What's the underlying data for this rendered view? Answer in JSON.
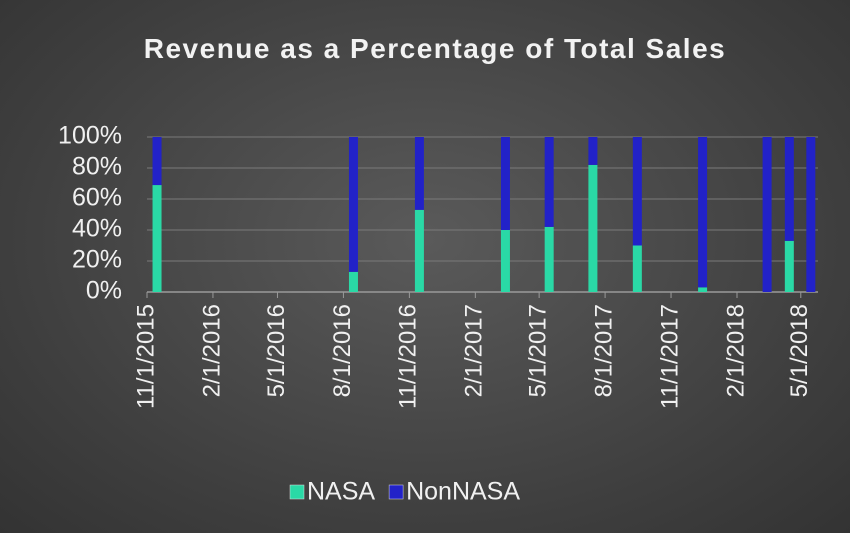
{
  "chart_data": {
    "type": "stacked_bar",
    "title": "Revenue as a Percentage of Total Sales",
    "x": [
      "11/15/2015",
      "8/15/2016",
      "11/15/2016",
      "3/15/2017",
      "5/15/2017",
      "7/15/2017",
      "9/15/2017",
      "12/15/2017",
      "3/15/2018",
      "4/15/2018",
      "5/15/2018"
    ],
    "series": [
      {
        "name": "NASA",
        "color": "#2ad9a6",
        "values": [
          69,
          13,
          53,
          40,
          42,
          82,
          30,
          3,
          0,
          33,
          0
        ]
      },
      {
        "name": "NonNASA",
        "color": "#2222c8",
        "values": [
          31,
          87,
          47,
          60,
          58,
          18,
          70,
          97,
          100,
          67,
          100
        ]
      }
    ],
    "xlim": [
      "11/1/2015",
      "5/25/2018"
    ],
    "xticks": [
      "11/1/2015",
      "2/1/2016",
      "5/1/2016",
      "8/1/2016",
      "11/1/2016",
      "2/1/2017",
      "5/1/2017",
      "8/1/2017",
      "11/1/2017",
      "2/1/2018",
      "5/1/2018"
    ],
    "ylim": [
      0,
      100
    ],
    "yticks": [
      {
        "value": 0,
        "label": "0%"
      },
      {
        "value": 20,
        "label": "20%"
      },
      {
        "value": 40,
        "label": "40%"
      },
      {
        "value": 60,
        "label": "60%"
      },
      {
        "value": 80,
        "label": "80%"
      },
      {
        "value": 100,
        "label": "100%"
      }
    ],
    "grid": true,
    "legend": "bottom"
  }
}
